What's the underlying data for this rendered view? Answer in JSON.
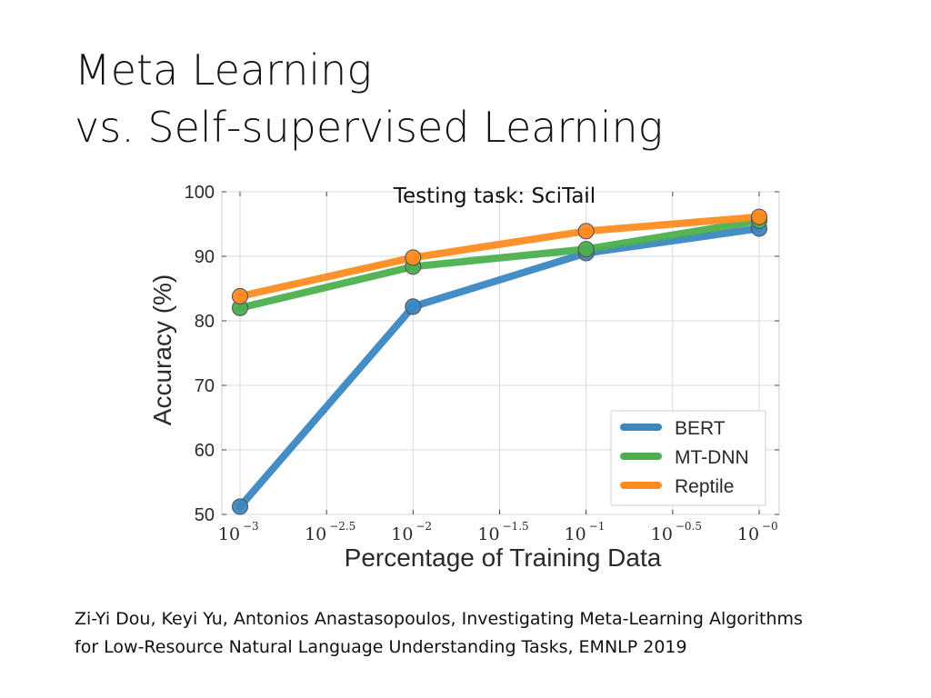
{
  "slide": {
    "title_line1": "Meta Learning",
    "title_line2": "vs. Self-supervised Learning",
    "citation_line1": "Zi-Yi Dou, Keyi Yu, Antonios Anastasopoulos, Investigating Meta-Learning Algorithms",
    "citation_line2": "for Low-Resource Natural Language Understanding Tasks, EMNLP 2019"
  },
  "chart_data": {
    "type": "line",
    "title": "Testing task: SciTail",
    "xlabel": "Percentage of Training Data",
    "ylabel": "Accuracy (%)",
    "x_scale": "log10",
    "x": [
      -3,
      -2,
      -1,
      0
    ],
    "xlim": [
      -3,
      0
    ],
    "ylim": [
      50,
      100
    ],
    "y_ticks": [
      50,
      60,
      70,
      80,
      90,
      100
    ],
    "x_ticks": [
      {
        "value": -3,
        "base": "10",
        "exp": "−3"
      },
      {
        "value": -2.5,
        "base": "10",
        "exp": "−2.5"
      },
      {
        "value": -2,
        "base": "10",
        "exp": "−2"
      },
      {
        "value": -1.5,
        "base": "10",
        "exp": "−1.5"
      },
      {
        "value": -1,
        "base": "10",
        "exp": "−1"
      },
      {
        "value": -0.5,
        "base": "10",
        "exp": "−0.5"
      },
      {
        "value": 0,
        "base": "10",
        "exp": "−0"
      }
    ],
    "grid": true,
    "legend_position": "lower-right",
    "series": [
      {
        "name": "BERT",
        "color": "#3a87c2",
        "values": [
          51.2,
          82.2,
          90.5,
          94.3
        ]
      },
      {
        "name": "MT-DNN",
        "color": "#4caf4f",
        "values": [
          82.0,
          88.4,
          91.1,
          95.5
        ]
      },
      {
        "name": "Reptile",
        "color": "#ff8c22",
        "values": [
          83.8,
          89.8,
          93.9,
          96.1
        ]
      }
    ]
  }
}
